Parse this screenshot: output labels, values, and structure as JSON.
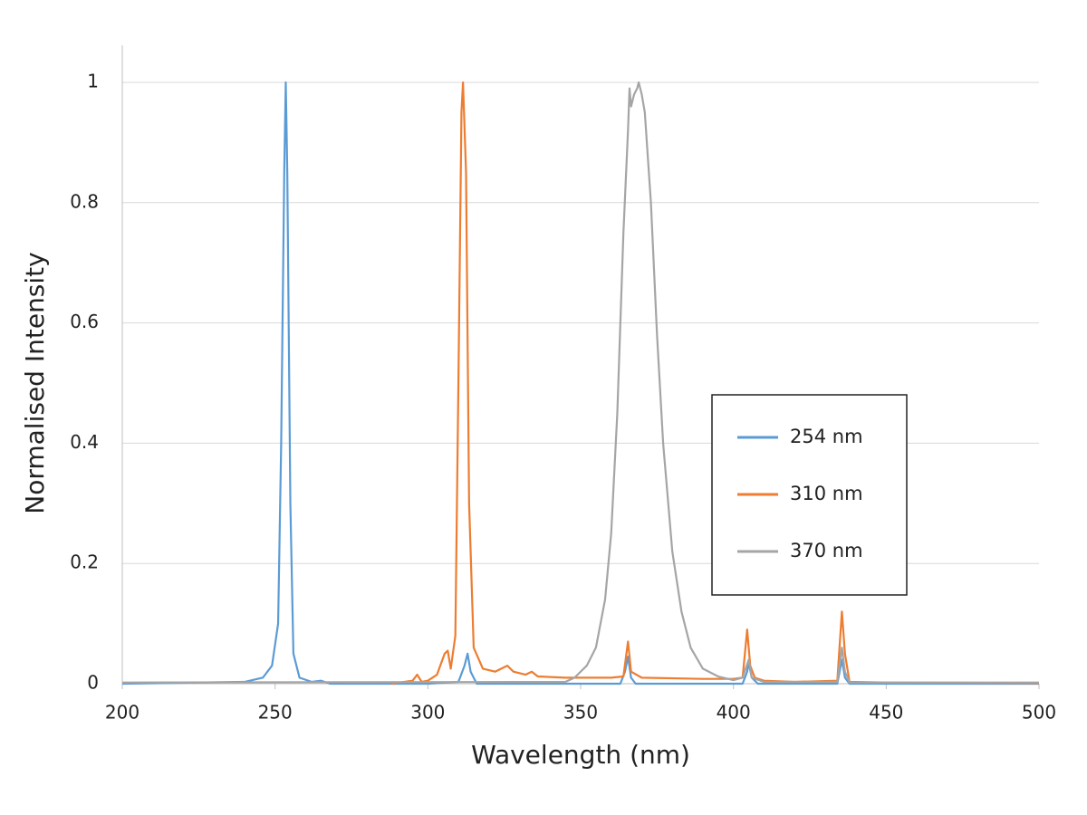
{
  "chart_data": {
    "type": "line",
    "xlabel": "Wavelength (nm)",
    "ylabel": "Normalised Intensity",
    "xlim": [
      200,
      500
    ],
    "xticks": [
      200,
      250,
      300,
      350,
      400,
      450,
      500
    ],
    "ylim": [
      0,
      1
    ],
    "yticks": [
      0,
      0.2,
      0.4,
      0.6,
      0.8,
      1
    ],
    "grid": true,
    "legend_position": "center-right",
    "series": [
      {
        "name": "254 nm",
        "color": "#5b9bd5",
        "x": [
          200,
          240,
          246,
          249,
          251,
          252,
          253,
          253.5,
          254,
          255,
          256,
          258,
          262,
          265,
          268,
          300,
          310,
          312,
          313,
          314,
          316,
          363,
          364.5,
          365.5,
          366.5,
          368,
          403,
          404.5,
          405,
          406,
          408,
          434,
          435.5,
          436.5,
          438,
          500
        ],
        "values": [
          0,
          0.003,
          0.01,
          0.03,
          0.1,
          0.4,
          0.85,
          1,
          0.85,
          0.3,
          0.05,
          0.01,
          0.003,
          0.005,
          0,
          0,
          0.003,
          0.03,
          0.05,
          0.02,
          0,
          0,
          0.02,
          0.045,
          0.01,
          0,
          0,
          0.02,
          0.035,
          0.01,
          0,
          0,
          0.04,
          0.01,
          0,
          0
        ]
      },
      {
        "name": "310 nm",
        "color": "#ed7d31",
        "x": [
          288,
          295,
          296.5,
          298,
          300,
          303,
          305.5,
          306.5,
          307.5,
          309,
          310,
          311,
          311.5,
          312.5,
          313.5,
          315,
          318,
          322,
          326,
          328,
          332,
          334,
          336,
          345,
          360,
          364,
          365.5,
          366.5,
          370,
          390,
          400,
          403,
          404.5,
          405.5,
          407,
          410,
          420,
          434,
          435.5,
          436.5,
          438,
          450,
          500
        ],
        "values": [
          0,
          0.005,
          0.015,
          0.003,
          0.005,
          0.015,
          0.05,
          0.055,
          0.025,
          0.08,
          0.5,
          0.95,
          1,
          0.85,
          0.3,
          0.06,
          0.025,
          0.02,
          0.03,
          0.02,
          0.015,
          0.02,
          0.012,
          0.01,
          0.01,
          0.012,
          0.07,
          0.02,
          0.01,
          0.008,
          0.008,
          0.01,
          0.09,
          0.03,
          0.01,
          0.005,
          0.003,
          0.005,
          0.12,
          0.05,
          0.003,
          0.002,
          0.001
        ]
      },
      {
        "name": "370 nm",
        "color": "#a5a5a5",
        "x": [
          200,
          345,
          348,
          352,
          355,
          358,
          360,
          362,
          364,
          365.5,
          366,
          366.5,
          367.5,
          368.5,
          369,
          370,
          371,
          373,
          375,
          377,
          380,
          383,
          386,
          390,
          395,
          400,
          403,
          405,
          406,
          410,
          434,
          435.5,
          436.5,
          438,
          500
        ],
        "values": [
          0.002,
          0.003,
          0.01,
          0.03,
          0.06,
          0.14,
          0.25,
          0.45,
          0.75,
          0.92,
          0.99,
          0.96,
          0.98,
          0.99,
          1,
          0.98,
          0.95,
          0.8,
          0.58,
          0.4,
          0.22,
          0.12,
          0.06,
          0.025,
          0.012,
          0.006,
          0.01,
          0.04,
          0.01,
          0.003,
          0.003,
          0.06,
          0.02,
          0.002,
          0.002
        ]
      }
    ]
  }
}
